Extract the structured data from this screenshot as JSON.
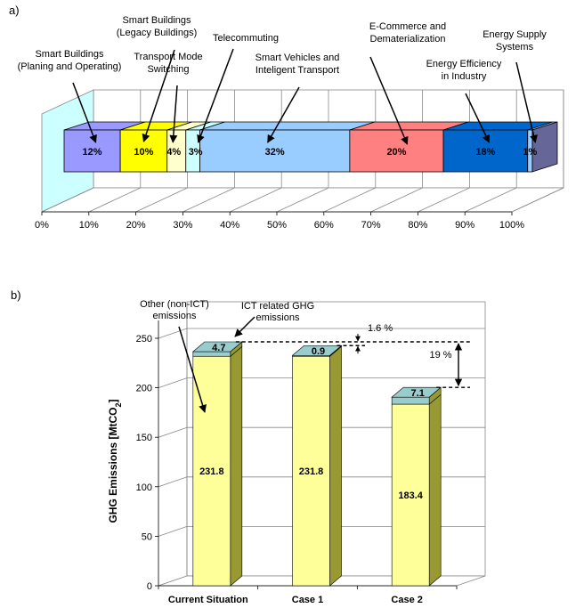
{
  "chart_data": [
    {
      "panel_label": "a)",
      "type": "bar",
      "stacked": true,
      "orientation": "horizontal",
      "xlim": [
        0,
        100
      ],
      "x_ticks": [
        "0%",
        "10%",
        "20%",
        "30%",
        "40%",
        "50%",
        "60%",
        "70%",
        "80%",
        "90%",
        "100%"
      ],
      "grid": true,
      "segments": [
        {
          "name": "Smart Buildings (Planing and Operating)",
          "label_lines": [
            "Smart Buildings",
            "(Planing and Operating)"
          ],
          "value": 12,
          "value_label": "12%",
          "color": "#9999ff"
        },
        {
          "name": "Smart Buildings (Legacy Buildings)",
          "label_lines": [
            "Smart Buildings",
            "(Legacy Buildings)"
          ],
          "value": 10,
          "value_label": "10%",
          "color": "#ffff00"
        },
        {
          "name": "Transport Mode Switching",
          "label_lines": [
            "Transport Mode",
            "Switching"
          ],
          "value": 4,
          "value_label": "4%",
          "color": "#ffffcc"
        },
        {
          "name": "Telecommuting",
          "label_lines": [
            "Telecommuting"
          ],
          "value": 3,
          "value_label": "3%",
          "color": "#ccffff"
        },
        {
          "name": "Smart Vehicles and Inteligent Transport",
          "label_lines": [
            "Smart Vehicles and",
            "Inteligent Transport"
          ],
          "value": 32,
          "value_label": "32%",
          "color": "#99ccff"
        },
        {
          "name": "E-Commerce and Dematerialization",
          "label_lines": [
            "E-Commerce and",
            "Dematerialization"
          ],
          "value": 20,
          "value_label": "20%",
          "color": "#ff8080"
        },
        {
          "name": "Energy Efficiency in Industry",
          "label_lines": [
            "Energy Efficiency",
            "in Industry"
          ],
          "value": 18,
          "value_label": "18%",
          "color": "#0066cc"
        },
        {
          "name": "Energy Supply Systems",
          "label_lines": [
            "Energy Supply",
            "Systems"
          ],
          "value": 1,
          "value_label": "1%",
          "color": "#99ccff"
        }
      ],
      "colors": {
        "wall": "#ccffff",
        "end_cap": "#666699"
      }
    },
    {
      "panel_label": "b)",
      "type": "bar",
      "stacked": true,
      "categories": [
        "Current Situation",
        "Case 1",
        "Case 2"
      ],
      "series": [
        {
          "values": [
            231.8,
            231.8,
            183.4
          ],
          "labels": [
            "231.8",
            "231.8",
            "183.4"
          ],
          "color": "#ffff99"
        },
        {
          "values": [
            4.7,
            0.9,
            7.1
          ],
          "labels": [
            "4.7",
            "0.9",
            "7.1"
          ],
          "color": "#99cccc"
        }
      ],
      "ylabel_main": "GHG Emissions [MtCO",
      "ylabel_sub": "2",
      "ylabel_end": "]",
      "ylim": [
        0,
        250
      ],
      "y_ticks": [
        0,
        50,
        100,
        150,
        200,
        250
      ],
      "grid": true,
      "annotations": {
        "other": [
          "Other (non-ICT)",
          "emissions"
        ],
        "ict": [
          "ICT related GHG",
          "emissions"
        ],
        "pct_case1": "1.6 %",
        "pct_case2": "19 %"
      },
      "colors": {
        "side": "#999933",
        "top": "#cccc66"
      }
    }
  ]
}
